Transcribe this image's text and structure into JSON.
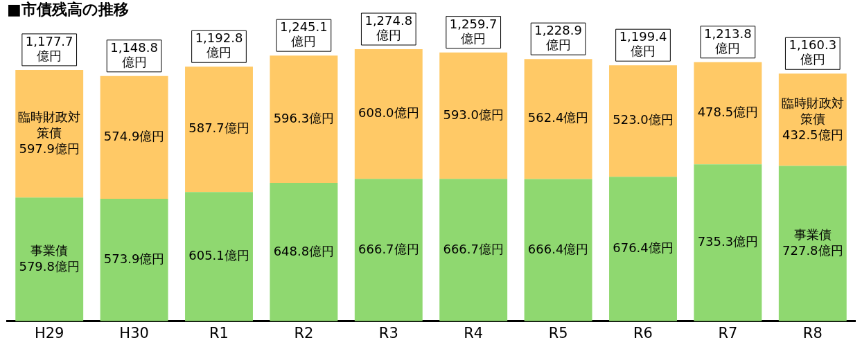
{
  "chart_data": {
    "type": "bar",
    "title": "■市債残高の推移",
    "stacked": true,
    "grid": false,
    "legend": false,
    "categories": [
      "H29",
      "H30",
      "R1",
      "R2",
      "R3",
      "R4",
      "R5",
      "R6",
      "R7",
      "R8"
    ],
    "series": [
      {
        "color": "#8fd870",
        "values": [
          579.8,
          573.9,
          605.1,
          648.8,
          666.7,
          666.7,
          666.4,
          676.4,
          735.3,
          727.8
        ],
        "value_labels": [
          "事業債\n579.8億円",
          "573.9億円",
          "605.1億円",
          "648.8億円",
          "666.7億円",
          "666.7億円",
          "666.4億円",
          "676.4億円",
          "735.3億円",
          "事業債\n727.8億円"
        ]
      },
      {
        "color": "#ffc966",
        "values": [
          597.9,
          574.9,
          587.7,
          596.3,
          608.0,
          593.0,
          562.4,
          523.0,
          478.5,
          432.5
        ],
        "value_labels": [
          "臨時財政対策債\n597.9億円",
          "574.9億円",
          "587.7億円",
          "596.3億円",
          "608.0億円",
          "593.0億円",
          "562.4億円",
          "523.0億円",
          "478.5億円",
          "臨時財政対策債\n432.5億円"
        ]
      }
    ],
    "totals": [
      "1,177.7\n億円",
      "1,148.8\n億円",
      "1,192.8\n億円",
      "1,245.1\n億円",
      "1,274.8\n億円",
      "1,259.7\n億円",
      "1,228.9\n億円",
      "1,199.4\n億円",
      "1,213.8\n億円",
      "1,160.3\n億円"
    ]
  }
}
